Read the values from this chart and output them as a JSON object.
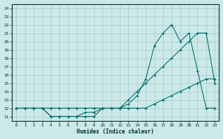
{
  "xlabel": "Humidex (Indice chaleur)",
  "background_color": "#cce8e8",
  "grid_color": "#aacece",
  "line_color": "#007070",
  "xlim": [
    -0.5,
    23.5
  ],
  "ylim": [
    10.5,
    24.5
  ],
  "xticks": [
    0,
    1,
    2,
    3,
    4,
    5,
    6,
    7,
    8,
    9,
    10,
    11,
    12,
    13,
    14,
    15,
    16,
    17,
    18,
    19,
    20,
    21,
    22,
    23
  ],
  "yticks": [
    11,
    12,
    13,
    14,
    15,
    16,
    17,
    18,
    19,
    20,
    21,
    22,
    23,
    24
  ],
  "line1_x": [
    0,
    1,
    2,
    3,
    4,
    5,
    6,
    7,
    8,
    9,
    10,
    11,
    12,
    13,
    14,
    15,
    16,
    17,
    18,
    19,
    20,
    21,
    22,
    23
  ],
  "line1_y": [
    12,
    12,
    12,
    12,
    11,
    11,
    11,
    11,
    11.5,
    11.5,
    12,
    12,
    12,
    12.5,
    13.5,
    15.5,
    19.5,
    21,
    22,
    20,
    21,
    16.5,
    12,
    12
  ],
  "line2_x": [
    0,
    1,
    2,
    3,
    4,
    5,
    6,
    7,
    8,
    9,
    10,
    11,
    12,
    13,
    14,
    15,
    16,
    17,
    18,
    19,
    20,
    21,
    22,
    23
  ],
  "line2_y": [
    12,
    12,
    12,
    12,
    11,
    11,
    11,
    11,
    11,
    11,
    12,
    12,
    12,
    13,
    14,
    15,
    16,
    17,
    18,
    19,
    20,
    21,
    21,
    15
  ],
  "line3_x": [
    0,
    1,
    2,
    3,
    4,
    5,
    6,
    7,
    8,
    9,
    10,
    11,
    12,
    13,
    14,
    15,
    16,
    17,
    18,
    19,
    20,
    21,
    22,
    23
  ],
  "line3_y": [
    12,
    12,
    12,
    12,
    12,
    12,
    12,
    12,
    12,
    12,
    12,
    12,
    12,
    12,
    12,
    12,
    12.5,
    13,
    13.5,
    14,
    14.5,
    15,
    15.5,
    15.5
  ]
}
